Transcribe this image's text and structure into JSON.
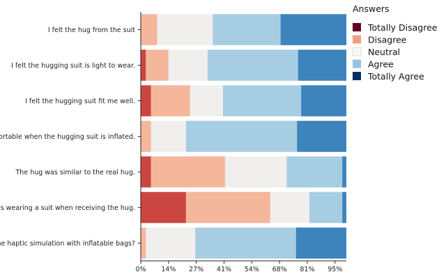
{
  "chart_data": {
    "type": "bar",
    "orientation": "horizontal",
    "stacked": true,
    "categories": [
      "I felt the hug from the suit",
      "I felt the hugging suit is light to wear.",
      "I felt the hugging suit fit me well.",
      "I felt comfortable when the hugging suit is inflated.",
      "The hug was similar to the real hug.",
      "I forgot I was wearing a suit when receiving the hug.",
      "I like the haptic simulation with inflatable bags?"
    ],
    "series": [
      {
        "name": "Totally Disagree",
        "color": "#cb4541",
        "values": [
          0,
          2.5,
          5,
          0,
          5,
          22,
          0
        ]
      },
      {
        "name": "Disagree",
        "color": "#f4b79c",
        "values": [
          8,
          11,
          19,
          5,
          36,
          41,
          2.5
        ]
      },
      {
        "name": "Neutral",
        "color": "#f1eeee",
        "values": [
          27,
          19,
          16,
          17,
          30,
          19,
          24
        ]
      },
      {
        "name": "Agree",
        "color": "#a7cde3",
        "values": [
          33,
          44,
          38,
          54,
          27,
          16,
          49
        ]
      },
      {
        "name": "Totally Agree",
        "color": "#3c84bb",
        "values": [
          32,
          23.5,
          22,
          24,
          2,
          2,
          24.5
        ]
      }
    ],
    "xlim": [
      0,
      100
    ],
    "x_ticks": [
      "0%",
      "14%",
      "27%",
      "41%",
      "54%",
      "68%",
      "81%",
      "95%"
    ],
    "x_tick_values": [
      0,
      13.5,
      27,
      40.5,
      54,
      67.5,
      81,
      94.5
    ],
    "legend": {
      "title": "Answers",
      "position": "top-right",
      "items": [
        {
          "label": "Totally Disagree",
          "color": "#67001f"
        },
        {
          "label": "Disagree",
          "color": "#f09e84"
        },
        {
          "label": "Neutral",
          "color": "#f7f7f7"
        },
        {
          "label": "Agree",
          "color": "#92c5de"
        },
        {
          "label": "Totally Agree",
          "color": "#053061"
        }
      ]
    },
    "title": "",
    "xlabel": "",
    "ylabel": ""
  }
}
